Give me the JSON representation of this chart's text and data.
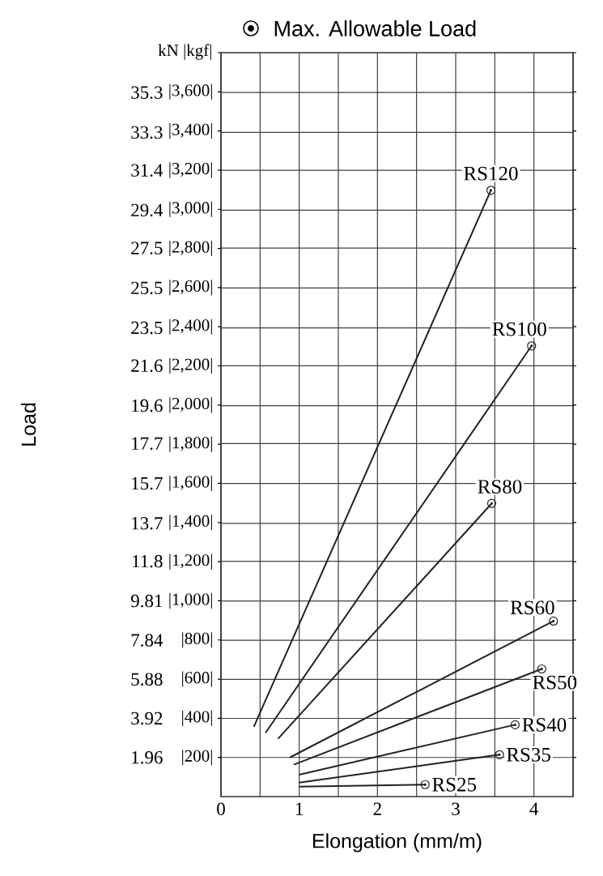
{
  "chart_data": {
    "type": "line",
    "xlabel": "Elongation (mm/m)",
    "ylabel": "Load",
    "annotations": [
      "Max. Allowable Load",
      "kN |kgf|"
    ],
    "xlim": [
      0,
      4.5
    ],
    "ylim": [
      0,
      37.3
    ],
    "y2lim": [
      0,
      3800
    ],
    "xticks": [
      0,
      {
        "value": 0.5,
        "label": null
      },
      1,
      {
        "value": 1.5,
        "label": null
      },
      2,
      {
        "value": 2.5,
        "label": null
      },
      3,
      {
        "value": 3.5,
        "label": null
      },
      4,
      {
        "value": 4.5,
        "label": null
      }
    ],
    "yticks": [
      1.96,
      3.92,
      5.88,
      7.84,
      9.81,
      11.8,
      13.7,
      15.7,
      17.7,
      19.6,
      21.6,
      23.5,
      25.5,
      27.5,
      29.4,
      31.4,
      33.3,
      35.3
    ],
    "y2ticks": [
      {
        "value": 200,
        "label": "|200|"
      },
      {
        "value": 400,
        "label": "|400|"
      },
      {
        "value": 600,
        "label": "|600|"
      },
      {
        "value": 800,
        "label": "|800|"
      },
      {
        "value": 1000,
        "label": "|1,000|"
      },
      {
        "value": 1200,
        "label": "|1,200|"
      },
      {
        "value": 1400,
        "label": "|1,400|"
      },
      {
        "value": 1600,
        "label": "|1,600|"
      },
      {
        "value": 1800,
        "label": "|1,800|"
      },
      {
        "value": 2000,
        "label": "|2,000|"
      },
      {
        "value": 2200,
        "label": "|2,200|"
      },
      {
        "value": 2400,
        "label": "|2,400|"
      },
      {
        "value": 2600,
        "label": "|2,600|"
      },
      {
        "value": 2800,
        "label": "|2,800|"
      },
      {
        "value": 3000,
        "label": "|3,000|"
      },
      {
        "value": 3200,
        "label": "|3,200|"
      },
      {
        "value": 3400,
        "label": "|3,400|"
      },
      {
        "value": 3600,
        "label": "|3,600|"
      },
      {
        "value": 3800,
        "label": null
      }
    ],
    "grid": true,
    "marker": "circle",
    "line_style": "solid",
    "series": [
      {
        "name": "RS120",
        "color": "#222222",
        "x": [
          0.42,
          3.45
        ],
        "values": [
          3.5,
          30.4
        ]
      },
      {
        "name": "RS100",
        "color": "#222222",
        "x": [
          0.57,
          3.97
        ],
        "values": [
          3.2,
          22.6
        ]
      },
      {
        "name": "RS80",
        "color": "#222222",
        "x": [
          0.73,
          3.46
        ],
        "values": [
          2.9,
          14.7
        ]
      },
      {
        "name": "RS60",
        "color": "#222222",
        "x": [
          0.88,
          4.25
        ],
        "values": [
          1.96,
          8.8
        ]
      },
      {
        "name": "RS50",
        "color": "#222222",
        "x": [
          0.93,
          4.1
        ],
        "values": [
          1.6,
          6.4
        ]
      },
      {
        "name": "RS40",
        "color": "#222222",
        "x": [
          1.0,
          3.76
        ],
        "values": [
          1.1,
          3.6
        ]
      },
      {
        "name": "RS35",
        "color": "#222222",
        "x": [
          1.0,
          3.56
        ],
        "values": [
          0.7,
          2.1
        ]
      },
      {
        "name": "RS25",
        "color": "#222222",
        "x": [
          1.0,
          2.61
        ],
        "values": [
          0.5,
          0.6
        ]
      }
    ]
  }
}
